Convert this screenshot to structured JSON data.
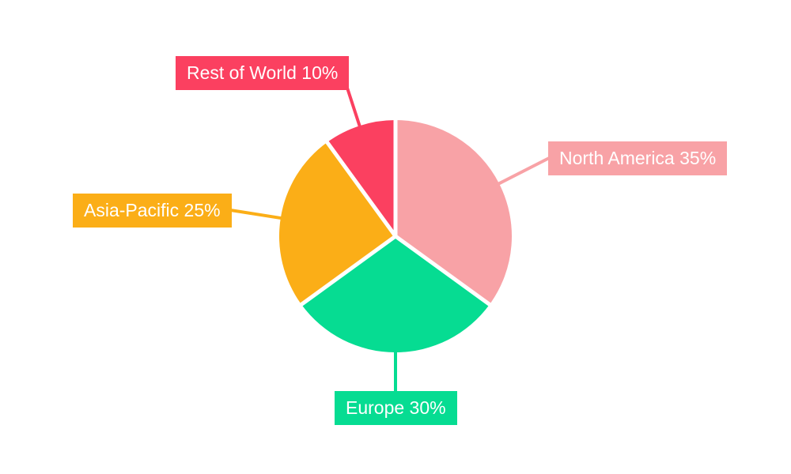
{
  "page": {
    "background_color": "#ffffff"
  },
  "chart_data": {
    "type": "pie",
    "title": "",
    "categories": [
      "North America",
      "Europe",
      "Asia-Pacific",
      "Rest of World"
    ],
    "values": [
      35,
      30,
      25,
      10
    ],
    "unit": "%",
    "slices": [
      {
        "name": "North America",
        "value": 35,
        "color": "#f8a2a6",
        "label_text": "North America 35%"
      },
      {
        "name": "Europe",
        "value": 30,
        "color": "#06dc92",
        "label_text": "Europe 30%"
      },
      {
        "name": "Asia-Pacific",
        "value": 25,
        "color": "#fbae17",
        "label_text": "Asia-Pacific 25%"
      },
      {
        "name": "Rest of World",
        "value": 10,
        "color": "#fb4060",
        "label_text": "Rest of World 10%"
      }
    ],
    "start_angle_deg": 0,
    "direction": "clockwise",
    "separator_color": "#ffffff",
    "label_text_color": "#ffffff",
    "labels_style": "external colored boxes with radial leader lines",
    "legend_position": "none",
    "grid": "off"
  }
}
